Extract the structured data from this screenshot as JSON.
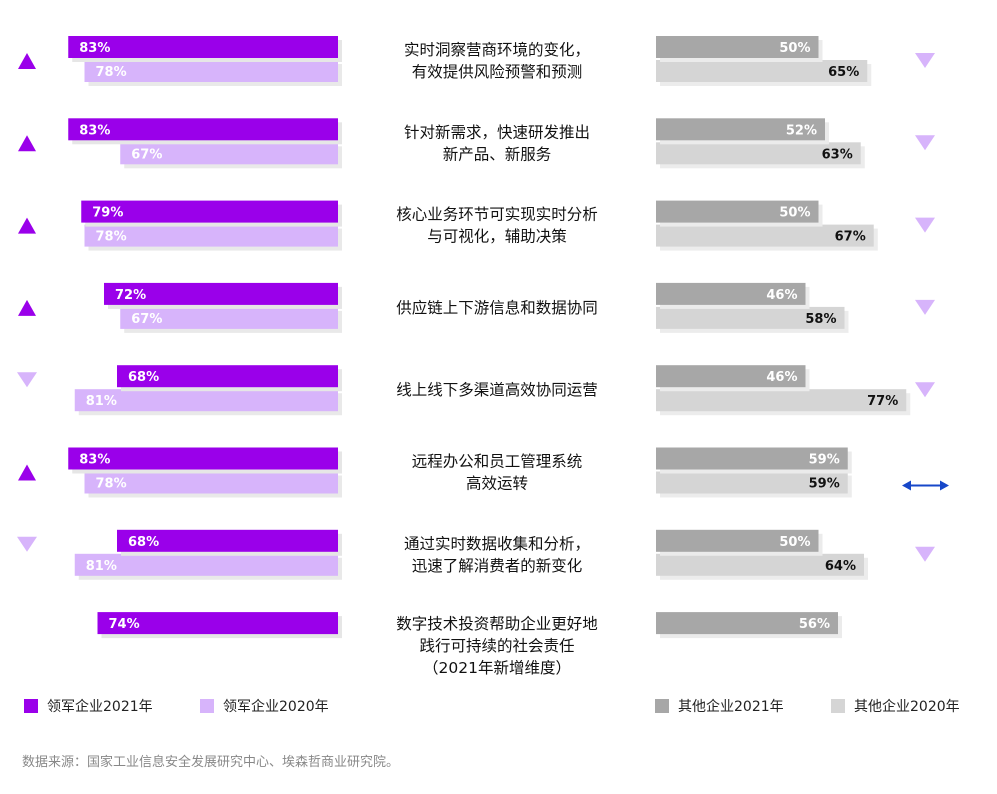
{
  "colors": {
    "leader_2021": "#9a00ea",
    "leader_2020": "#d7b4fb",
    "other_2021": "#a7a7a7",
    "other_2020": "#d5d5d5",
    "trend_arrow": "#9a00ea",
    "flat_arrow": "#1747c9"
  },
  "chart_data": {
    "type": "bar",
    "orientation": "horizontal-butterfly",
    "xlim": [
      0,
      100
    ],
    "categories": [
      [
        "实时洞察营商环境的变化，",
        "有效提供风险预警和预测"
      ],
      [
        "针对新需求，快速研发推出",
        "新产品、新服务"
      ],
      [
        "核心业务环节可实现实时分析",
        "与可视化，辅助决策"
      ],
      [
        "供应链上下游信息和数据协同"
      ],
      [
        "线上线下多渠道高效协同运营"
      ],
      [
        "远程办公和员工管理系统",
        "高效运转"
      ],
      [
        "通过实时数据收集和分析，",
        "迅速了解消费者的新变化"
      ],
      [
        "数字技术投资帮助企业更好地",
        "践行可持续的社会责任",
        "（2021年新增维度）"
      ]
    ],
    "series": [
      {
        "name": "领军企业2021年",
        "side": "left",
        "values": [
          83,
          83,
          79,
          72,
          68,
          83,
          68,
          74
        ]
      },
      {
        "name": "领军企业2020年",
        "side": "left",
        "values": [
          78,
          67,
          78,
          67,
          81,
          78,
          81,
          null
        ]
      },
      {
        "name": "其他企业2021年",
        "side": "right",
        "values": [
          50,
          52,
          50,
          46,
          46,
          59,
          50,
          56
        ]
      },
      {
        "name": "其他企业2020年",
        "side": "right",
        "values": [
          65,
          63,
          67,
          58,
          77,
          59,
          64,
          null
        ]
      }
    ],
    "leader_trend": [
      "up",
      "up",
      "up",
      "up",
      "down",
      "up",
      "down",
      null
    ],
    "other_trend": [
      "down",
      "down",
      "down",
      "down",
      "down",
      "flat",
      "down",
      null
    ],
    "value_suffix": "%"
  },
  "legend": [
    {
      "label": "领军企业2021年",
      "color": "#9a00ea"
    },
    {
      "label": "领军企业2020年",
      "color": "#d7b4fb"
    },
    {
      "label": "其他企业2021年",
      "color": "#a7a7a7"
    },
    {
      "label": "其他企业2020年",
      "color": "#d5d5d5"
    }
  ],
  "source": "数据来源：国家工业信息安全发展研究中心、埃森哲商业研究院。"
}
